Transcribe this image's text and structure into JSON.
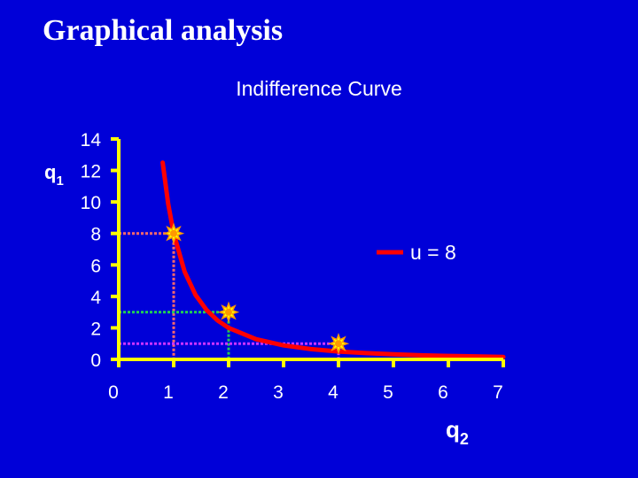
{
  "slide": {
    "title": "Graphical analysis"
  },
  "chart_data": {
    "type": "line",
    "title": "Indifference Curve",
    "xlabel": "q",
    "xlabel_sub": "2",
    "ylabel": "q",
    "ylabel_sub": "1",
    "xlim": [
      0,
      7
    ],
    "ylim": [
      0,
      14
    ],
    "x_ticks": [
      0,
      1,
      2,
      3,
      4,
      5,
      6,
      7
    ],
    "y_ticks": [
      0,
      2,
      4,
      6,
      8,
      10,
      12,
      14
    ],
    "grid": false,
    "legend": "right",
    "series": [
      {
        "name": "u = 8",
        "color": "#ff0000",
        "x": [
          0.8,
          0.9,
          1,
          1.2,
          1.4,
          1.6,
          1.8,
          2,
          2.5,
          3,
          3.5,
          4,
          4.5,
          5,
          5.5,
          6,
          6.5,
          7
        ],
        "y": [
          12.5,
          9.88,
          8,
          5.56,
          4.08,
          3.13,
          2.47,
          2,
          1.28,
          0.89,
          0.65,
          0.5,
          0.4,
          0.32,
          0.26,
          0.22,
          0.19,
          0.16
        ]
      }
    ],
    "highlighted_points": [
      {
        "x": 1,
        "y": 8,
        "guide_color": "#ff6a6a"
      },
      {
        "x": 2,
        "y": 3,
        "guide_color": "#22cc55"
      },
      {
        "x": 4,
        "y": 1,
        "guide_color": "#cc33ff"
      }
    ],
    "colors": {
      "background": "#0000d8",
      "axis": "#ffff00",
      "text": "#ffffff",
      "point_fill": "#ff9900",
      "point_star": "#ffff00"
    }
  }
}
